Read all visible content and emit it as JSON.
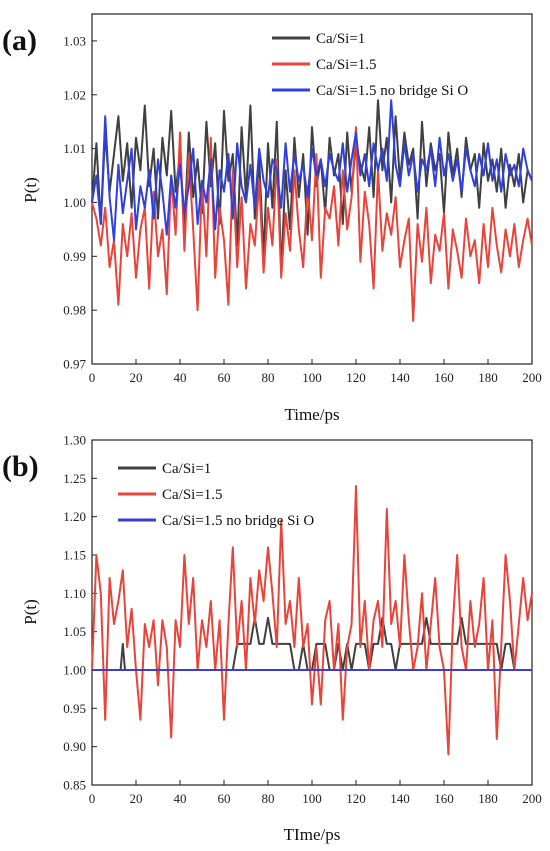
{
  "chart_data": [
    {
      "type": "line",
      "panel_label": "(a)",
      "xlabel": "Time/ps",
      "ylabel": "P(t)",
      "xlim": [
        0,
        200
      ],
      "ylim": [
        0.97,
        1.035
      ],
      "xticks": [
        0,
        20,
        40,
        60,
        80,
        100,
        120,
        140,
        160,
        180,
        200
      ],
      "yticks": [
        "0.97",
        "0.98",
        "0.99",
        "1.00",
        "1.01",
        "1.02",
        "1.03"
      ],
      "grid": false,
      "legend": "top-right",
      "series": [
        {
          "name": "Ca/Si=1",
          "color": "#404040",
          "x": [
            0,
            2,
            4,
            6,
            8,
            10,
            12,
            14,
            16,
            18,
            20,
            22,
            24,
            26,
            28,
            30,
            32,
            34,
            36,
            38,
            40,
            42,
            44,
            46,
            48,
            50,
            52,
            54,
            56,
            58,
            60,
            62,
            64,
            66,
            68,
            70,
            72,
            74,
            76,
            78,
            80,
            82,
            84,
            86,
            88,
            90,
            92,
            94,
            96,
            98,
            100,
            102,
            104,
            106,
            108,
            110,
            112,
            114,
            116,
            118,
            120,
            122,
            124,
            126,
            128,
            130,
            132,
            134,
            136,
            138,
            140,
            142,
            144,
            146,
            148,
            150,
            152,
            154,
            156,
            158,
            160,
            162,
            164,
            166,
            168,
            170,
            172,
            174,
            176,
            178,
            180,
            182,
            184,
            186,
            188,
            190,
            192,
            194,
            196,
            198,
            200
          ],
          "y": [
            1.0,
            1.011,
            0.996,
            1.013,
            1.002,
            1.009,
            1.016,
            1.004,
            1.011,
            0.999,
            1.012,
            1.006,
            1.018,
            1.003,
            1.01,
            0.997,
            1.012,
            1.005,
            1.017,
            1.002,
            1.009,
            0.995,
            1.013,
            1.001,
            1.008,
            0.998,
            1.015,
            1.003,
            1.011,
            0.996,
            1.017,
            1.004,
            1.009,
            0.992,
            1.014,
            1.001,
            1.018,
            0.997,
            1.008,
            0.99,
            1.011,
            0.999,
            1.015,
            0.987,
            1.006,
            0.995,
            1.012,
            1.001,
            1.009,
            0.994,
            1.014,
            1.003,
            1.008,
            0.998,
            1.012,
            1.005,
            1.009,
            0.996,
            1.013,
            1.002,
            1.011,
            1.007,
            1.004,
            1.014,
            1.001,
            1.019,
            1.006,
            1.012,
            1.0,
            1.016,
            1.004,
            1.013,
            1.007,
            1.01,
            0.997,
            1.015,
            1.003,
            1.011,
            1.006,
            1.009,
            0.998,
            1.013,
            1.005,
            1.01,
            1.001,
            1.012,
            1.006,
            1.009,
            0.999,
            1.011,
            1.004,
            1.008,
            1.002,
            1.01,
            0.999,
            1.007,
            1.003,
            1.009,
            1.0,
            1.006,
            1.004
          ]
        },
        {
          "name": "Ca/Si=1.5",
          "color": "#e8443a",
          "x": [
            0,
            2,
            4,
            6,
            8,
            10,
            12,
            14,
            16,
            18,
            20,
            22,
            24,
            26,
            28,
            30,
            32,
            34,
            36,
            38,
            40,
            42,
            44,
            46,
            48,
            50,
            52,
            54,
            56,
            58,
            60,
            62,
            64,
            66,
            68,
            70,
            72,
            74,
            76,
            78,
            80,
            82,
            84,
            86,
            88,
            90,
            92,
            94,
            96,
            98,
            100,
            102,
            104,
            106,
            108,
            110,
            112,
            114,
            116,
            118,
            120,
            122,
            124,
            126,
            128,
            130,
            132,
            134,
            136,
            138,
            140,
            142,
            144,
            146,
            148,
            150,
            152,
            154,
            156,
            158,
            160,
            162,
            164,
            166,
            168,
            170,
            172,
            174,
            176,
            178,
            180,
            182,
            184,
            186,
            188,
            190,
            192,
            194,
            196,
            198,
            200
          ],
          "y": [
            1.0,
            0.997,
            0.992,
            0.999,
            0.988,
            0.993,
            0.981,
            0.996,
            0.99,
            0.998,
            0.986,
            0.995,
            0.999,
            0.984,
            1.002,
            0.99,
            0.995,
            0.983,
            1.005,
            0.994,
            1.013,
            0.991,
            1.009,
            0.995,
            0.98,
            1.004,
            0.99,
            1.012,
            0.986,
            0.999,
            0.993,
            0.981,
            1.006,
            0.988,
            1.001,
            0.984,
            0.996,
            0.992,
            1.004,
            0.987,
            0.999,
            0.992,
            1.008,
            0.986,
            0.998,
            0.991,
            1.006,
            0.995,
            0.988,
            1.003,
            0.993,
            1.009,
            0.986,
            0.999,
            0.997,
            1.003,
            0.992,
            1.006,
            0.995,
            1.001,
            1.014,
            0.989,
            1.002,
            0.996,
            0.984,
            1.006,
            0.991,
            0.998,
            0.994,
            1.001,
            0.988,
            0.993,
            0.997,
            0.978,
            0.996,
            0.989,
            0.999,
            0.985,
            0.994,
            0.991,
            0.998,
            0.984,
            0.995,
            0.991,
            0.986,
            0.997,
            0.99,
            0.993,
            0.985,
            0.996,
            0.988,
            0.999,
            0.992,
            0.987,
            0.995,
            0.99,
            0.996,
            0.988,
            0.993,
            0.997,
            0.992
          ]
        },
        {
          "name": "Ca/Si=1.5 no bridge Si O",
          "color": "#2f3fe0",
          "x": [
            0,
            2,
            4,
            6,
            8,
            10,
            12,
            14,
            16,
            18,
            20,
            22,
            24,
            26,
            28,
            30,
            32,
            34,
            36,
            38,
            40,
            42,
            44,
            46,
            48,
            50,
            52,
            54,
            56,
            58,
            60,
            62,
            64,
            66,
            68,
            70,
            72,
            74,
            76,
            78,
            80,
            82,
            84,
            86,
            88,
            90,
            92,
            94,
            96,
            98,
            100,
            102,
            104,
            106,
            108,
            110,
            112,
            114,
            116,
            118,
            120,
            122,
            124,
            126,
            128,
            130,
            132,
            134,
            136,
            138,
            140,
            142,
            144,
            146,
            148,
            150,
            152,
            154,
            156,
            158,
            160,
            162,
            164,
            166,
            168,
            170,
            172,
            174,
            176,
            178,
            180,
            182,
            184,
            186,
            188,
            190,
            192,
            194,
            196,
            198,
            200
          ],
          "y": [
            1.0,
            1.005,
            0.996,
            1.016,
            1.001,
            0.993,
            1.007,
            0.998,
            1.004,
            1.01,
            0.995,
            1.003,
            0.999,
            1.006,
            0.997,
            1.008,
            1.002,
            0.994,
            1.005,
            0.999,
            1.007,
            0.998,
            1.003,
            1.01,
            0.996,
            1.004,
            1.0,
            1.008,
            0.995,
            1.006,
            1.002,
            1.009,
            0.997,
            1.011,
            1.003,
            1.0,
            1.007,
            0.999,
            1.01,
            1.004,
            1.001,
            1.008,
            1.006,
            0.999,
            1.011,
            1.002,
            1.009,
            1.004,
            1.007,
            1.001,
            1.01,
            1.005,
            1.008,
            1.003,
            1.009,
            1.006,
            1.004,
            1.011,
            1.002,
            1.008,
            1.013,
            1.005,
            1.009,
            1.003,
            1.011,
            1.006,
            1.01,
            1.004,
            1.019,
            1.007,
            1.003,
            1.011,
            1.005,
            1.009,
            1.002,
            1.008,
            1.006,
            1.01,
            1.003,
            1.012,
            1.005,
            1.009,
            1.004,
            1.008,
            1.002,
            1.01,
            1.006,
            1.003,
            1.009,
            1.005,
            1.011,
            1.004,
            1.008,
            1.002,
            1.009,
            1.005,
            1.007,
            1.003,
            1.01,
            1.006,
            1.004
          ]
        }
      ]
    },
    {
      "type": "line",
      "panel_label": "(b)",
      "xlabel": "TIme/ps",
      "ylabel": "P(t)",
      "xlim": [
        0,
        200
      ],
      "ylim": [
        0.85,
        1.3
      ],
      "xticks": [
        0,
        20,
        40,
        60,
        80,
        100,
        120,
        140,
        160,
        180,
        200
      ],
      "yticks": [
        "0.85",
        "0.90",
        "0.95",
        "1.00",
        "1.05",
        "1.10",
        "1.15",
        "1.20",
        "1.25",
        "1.30"
      ],
      "grid": false,
      "legend": "top-left",
      "series": [
        {
          "name": "Ca/Si=1",
          "color": "#404040",
          "x": [
            0,
            2,
            4,
            6,
            8,
            10,
            12,
            13,
            14,
            15,
            16,
            18,
            20,
            60,
            62,
            64,
            66,
            68,
            70,
            72,
            74,
            76,
            78,
            80,
            82,
            84,
            86,
            88,
            90,
            92,
            94,
            96,
            98,
            100,
            102,
            104,
            106,
            108,
            110,
            112,
            114,
            116,
            118,
            120,
            122,
            124,
            126,
            128,
            130,
            132,
            134,
            136,
            138,
            140,
            142,
            144,
            146,
            148,
            150,
            152,
            154,
            156,
            158,
            160,
            162,
            164,
            166,
            168,
            170,
            172,
            174,
            176,
            178,
            180,
            182,
            184,
            186,
            188,
            190,
            192,
            194,
            196,
            198,
            200
          ],
          "y": [
            1.0,
            1.0,
            1.0,
            1.0,
            1.0,
            1.0,
            1.0,
            1.0,
            1.034,
            1.0,
            1.0,
            1.0,
            1.0,
            1.0,
            1.0,
            1.0,
            1.034,
            1.034,
            1.034,
            1.034,
            1.068,
            1.034,
            1.034,
            1.068,
            1.034,
            1.034,
            1.034,
            1.034,
            1.034,
            1.0,
            1.0,
            1.034,
            1.0,
            1.0,
            1.034,
            1.034,
            1.034,
            1.0,
            1.0,
            1.034,
            1.0,
            1.034,
            1.0,
            1.034,
            1.034,
            1.034,
            1.0,
            1.034,
            1.034,
            1.068,
            1.034,
            1.034,
            1.0,
            1.034,
            1.034,
            1.034,
            1.034,
            1.034,
            1.034,
            1.068,
            1.034,
            1.034,
            1.034,
            1.034,
            1.034,
            1.034,
            1.034,
            1.068,
            1.034,
            1.034,
            1.034,
            1.034,
            1.034,
            1.034,
            1.034,
            1.034,
            1.0,
            1.034,
            1.034,
            1.0,
            1.0,
            1.0,
            1.0,
            1.0
          ]
        },
        {
          "name": "Ca/Si=1.5",
          "color": "#e8443a",
          "x": [
            0,
            2,
            4,
            6,
            8,
            10,
            12,
            14,
            16,
            18,
            20,
            22,
            24,
            26,
            28,
            30,
            32,
            34,
            36,
            38,
            40,
            42,
            44,
            46,
            48,
            50,
            52,
            54,
            56,
            58,
            60,
            62,
            64,
            66,
            68,
            70,
            72,
            74,
            76,
            78,
            80,
            82,
            84,
            86,
            88,
            90,
            92,
            94,
            96,
            98,
            100,
            102,
            104,
            106,
            108,
            110,
            112,
            114,
            116,
            118,
            120,
            122,
            124,
            126,
            128,
            130,
            132,
            134,
            136,
            138,
            140,
            142,
            144,
            146,
            148,
            150,
            152,
            154,
            156,
            158,
            160,
            162,
            164,
            166,
            168,
            170,
            172,
            174,
            176,
            178,
            180,
            182,
            184,
            186,
            188,
            190,
            192,
            194,
            196,
            198,
            200
          ],
          "y": [
            1.0,
            1.15,
            1.1,
            0.935,
            1.12,
            1.06,
            1.09,
            1.13,
            1.03,
            1.08,
            1.0,
            0.935,
            1.06,
            1.03,
            1.065,
            0.98,
            1.065,
            1.03,
            0.912,
            1.065,
            1.03,
            1.15,
            1.06,
            1.12,
            1.0,
            1.065,
            1.03,
            1.09,
            1.0,
            1.065,
            0.935,
            1.06,
            1.16,
            1.03,
            1.09,
            1.0,
            1.12,
            1.06,
            1.13,
            1.09,
            1.16,
            1.1,
            1.03,
            1.195,
            1.06,
            1.09,
            1.03,
            1.12,
            1.03,
            1.06,
            0.955,
            1.03,
            0.955,
            1.065,
            1.09,
            1.0,
            1.06,
            0.935,
            1.03,
            1.06,
            1.24,
            1.03,
            1.09,
            1.0,
            1.065,
            1.09,
            1.03,
            1.21,
            1.06,
            1.09,
            1.03,
            1.15,
            1.065,
            1.0,
            1.03,
            1.1,
            1.0,
            1.06,
            1.12,
            1.03,
            1.0,
            0.89,
            1.06,
            1.15,
            1.03,
            1.0,
            1.09,
            1.03,
            1.06,
            1.12,
            1.0,
            1.065,
            0.91,
            1.03,
            1.15,
            1.09,
            1.0,
            1.06,
            1.12,
            1.065,
            1.1
          ]
        },
        {
          "name": "Ca/Si=1.5 no bridge Si O",
          "color": "#3b3bd6",
          "x": [
            0,
            200
          ],
          "y": [
            1.0,
            1.0
          ]
        }
      ]
    }
  ]
}
